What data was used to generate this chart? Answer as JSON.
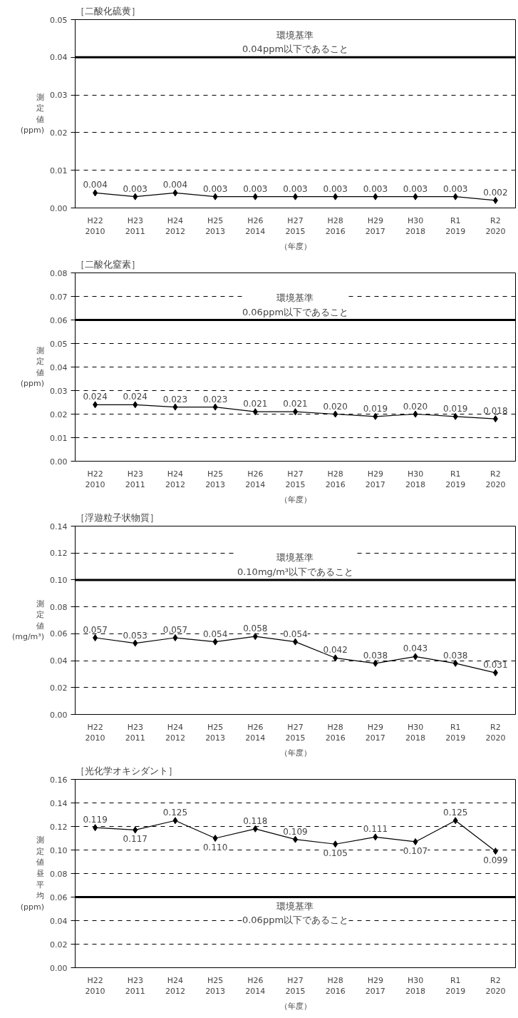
{
  "chart_data": [
    {
      "type": "line",
      "title": "［二酸化硫黄］",
      "ylabel": "測定値(ppm)",
      "xlabel": "（年度）",
      "categories": [
        "H22\n2010",
        "H23\n2011",
        "H24\n2012",
        "H25\n2013",
        "H26\n2014",
        "H27\n2015",
        "H28\n2016",
        "H29\n2017",
        "H30\n2018",
        "R1\n2019",
        "R2\n2020"
      ],
      "series": [
        {
          "color": "#000000",
          "values": [
            0.004,
            0.003,
            0.004,
            0.003,
            0.003,
            0.003,
            0.003,
            0.003,
            0.003,
            0.003,
            0.002
          ],
          "value_labels": [
            "0.004",
            "0.003",
            "0.004",
            "0.003",
            "0.003",
            "0.003",
            "0.003",
            "0.003",
            "0.003",
            "0.003",
            "0.002"
          ]
        }
      ],
      "ylim": [
        0,
        0.05
      ],
      "yticks": [
        {
          "value": 0,
          "label": "0.00"
        },
        {
          "value": 0.01,
          "label": "0.01"
        },
        {
          "value": 0.02,
          "label": "0.02"
        },
        {
          "value": 0.03,
          "label": "0.03"
        },
        {
          "value": 0.04,
          "label": "0.04"
        },
        {
          "value": 0.05,
          "label": "0.05"
        }
      ],
      "ref_lines": [
        {
          "axis": "y",
          "value": 0.04,
          "label": "環境基準\n0.04ppm以下であること",
          "color": "#000000"
        }
      ],
      "grid": "y",
      "marker": "diamond",
      "line_style": "solid"
    },
    {
      "type": "line",
      "title": "［二酸化窒素］",
      "ylabel": "測定値(ppm)",
      "xlabel": "（年度）",
      "categories": [
        "H22\n2010",
        "H23\n2011",
        "H24\n2012",
        "H25\n2013",
        "H26\n2014",
        "H27\n2015",
        "H28\n2016",
        "H29\n2017",
        "H30\n2018",
        "R1\n2019",
        "R2\n2020"
      ],
      "series": [
        {
          "color": "#000000",
          "values": [
            0.024,
            0.024,
            0.023,
            0.023,
            0.021,
            0.021,
            0.02,
            0.019,
            0.02,
            0.019,
            0.018
          ],
          "value_labels": [
            "0.024",
            "0.024",
            "0.023",
            "0.023",
            "0.021",
            "0.021",
            "0.020",
            "0.019",
            "0.020",
            "0.019",
            "0.018"
          ]
        }
      ],
      "ylim": [
        0,
        0.08
      ],
      "yticks": [
        {
          "value": 0,
          "label": "0.00"
        },
        {
          "value": 0.01,
          "label": "0.01"
        },
        {
          "value": 0.02,
          "label": "0.02"
        },
        {
          "value": 0.03,
          "label": "0.03"
        },
        {
          "value": 0.04,
          "label": "0.04"
        },
        {
          "value": 0.05,
          "label": "0.05"
        },
        {
          "value": 0.06,
          "label": "0.06"
        },
        {
          "value": 0.07,
          "label": "0.07"
        },
        {
          "value": 0.08,
          "label": "0.08"
        }
      ],
      "ref_lines": [
        {
          "axis": "y",
          "value": 0.06,
          "label": "環境基準\n0.06ppm以下であること",
          "color": "#000000"
        }
      ],
      "grid": "y",
      "marker": "diamond",
      "line_style": "solid"
    },
    {
      "type": "line",
      "title": "［浮遊粒子状物質］",
      "ylabel": "測定値(mg/m³)",
      "xlabel": "（年度）",
      "categories": [
        "H22\n2010",
        "H23\n2011",
        "H24\n2012",
        "H25\n2013",
        "H26\n2014",
        "H27\n2015",
        "H28\n2016",
        "H29\n2017",
        "H30\n2018",
        "R1\n2019",
        "R2\n2020"
      ],
      "series": [
        {
          "color": "#000000",
          "values": [
            0.057,
            0.053,
            0.057,
            0.054,
            0.058,
            0.054,
            0.042,
            0.038,
            0.043,
            0.038,
            0.031
          ],
          "value_labels": [
            "0.057",
            "0.053",
            "0.057",
            "0.054",
            "0.058",
            "0.054",
            "0.042",
            "0.038",
            "0.043",
            "0.038",
            "0.031"
          ]
        }
      ],
      "ylim": [
        0,
        0.14
      ],
      "yticks": [
        {
          "value": 0,
          "label": "0.00"
        },
        {
          "value": 0.02,
          "label": "0.02"
        },
        {
          "value": 0.04,
          "label": "0.04"
        },
        {
          "value": 0.06,
          "label": "0.06"
        },
        {
          "value": 0.08,
          "label": "0.08"
        },
        {
          "value": 0.1,
          "label": "0.10"
        },
        {
          "value": 0.12,
          "label": "0.12"
        },
        {
          "value": 0.14,
          "label": "0.14"
        }
      ],
      "ref_lines": [
        {
          "axis": "y",
          "value": 0.1,
          "label": "環境基準\n0.10mg/m³以下であること",
          "color": "#000000"
        }
      ],
      "grid": "y",
      "marker": "diamond",
      "line_style": "solid"
    },
    {
      "type": "line",
      "title": "［光化学オキシダント］",
      "ylabel": "測定値昼平均(ppm)",
      "xlabel": "（年度）",
      "categories": [
        "H22\n2010",
        "H23\n2011",
        "H24\n2012",
        "H25\n2013",
        "H26\n2014",
        "H27\n2015",
        "H28\n2016",
        "H29\n2017",
        "H30\n2018",
        "R1\n2019",
        "R2\n2020"
      ],
      "series": [
        {
          "color": "#000000",
          "values": [
            0.119,
            0.117,
            0.125,
            0.11,
            0.118,
            0.109,
            0.105,
            0.111,
            0.107,
            0.125,
            0.099
          ],
          "value_labels": [
            "0.119",
            "0.117",
            "0.125",
            "0.110",
            "0.118",
            "0.109",
            "0.105",
            "0.111",
            "0.107",
            "0.125",
            "0.099"
          ]
        }
      ],
      "ylim": [
        0,
        0.16
      ],
      "yticks": [
        {
          "value": 0,
          "label": "0.00"
        },
        {
          "value": 0.02,
          "label": "0.02"
        },
        {
          "value": 0.04,
          "label": "0.04"
        },
        {
          "value": 0.06,
          "label": "0.06"
        },
        {
          "value": 0.08,
          "label": "0.08"
        },
        {
          "value": 0.1,
          "label": "0.10"
        },
        {
          "value": 0.12,
          "label": "0.12"
        },
        {
          "value": 0.14,
          "label": "0.14"
        },
        {
          "value": 0.16,
          "label": "0.16"
        }
      ],
      "ref_lines": [
        {
          "axis": "y",
          "value": 0.06,
          "label": "環境基準\n0.06ppm以下であること",
          "color": "#000000"
        }
      ],
      "grid": "y",
      "marker": "diamond",
      "line_style": "solid"
    }
  ]
}
